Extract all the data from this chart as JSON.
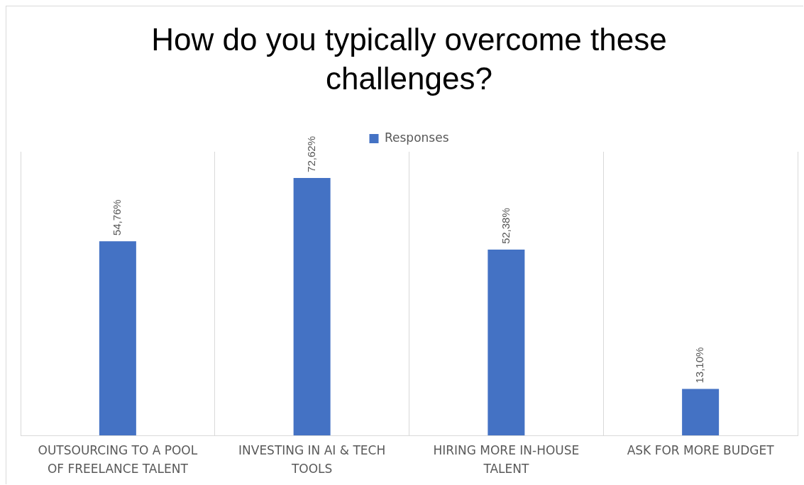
{
  "chart_data": {
    "type": "bar",
    "title": "How do you typically overcome these challenges?",
    "categories": [
      "OUTSOURCING TO A POOL OF FREELANCE TALENT",
      "INVESTING IN AI & TECH TOOLS",
      "HIRING MORE IN-HOUSE TALENT",
      "ASK FOR MORE BUDGET"
    ],
    "series": [
      {
        "name": "Responses",
        "color": "#4472c4",
        "values": [
          54.76,
          72.62,
          52.38,
          13.1
        ],
        "value_labels": [
          "54,76%",
          "72,62%",
          "52,38%",
          "13,10%"
        ]
      }
    ],
    "grid": "x",
    "legend": "top",
    "tick_labels": "x"
  }
}
